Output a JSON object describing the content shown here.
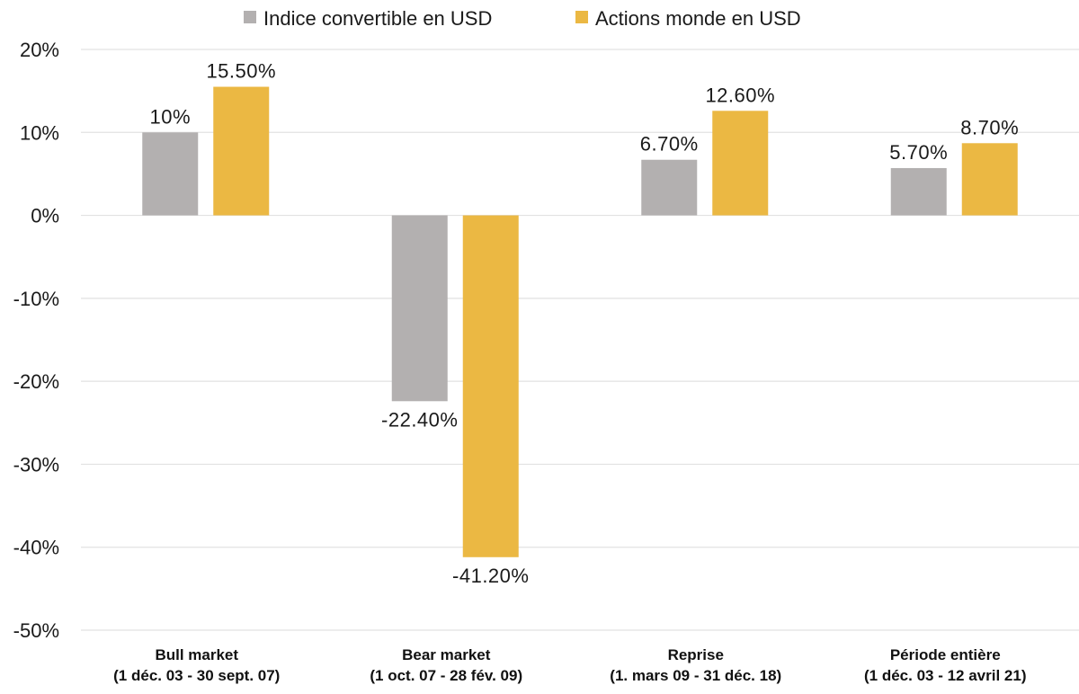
{
  "chart_data": {
    "type": "bar",
    "title": "",
    "xlabel": "",
    "ylabel": "",
    "ylim": [
      -50,
      20
    ],
    "yticks": [
      20,
      10,
      0,
      -10,
      -20,
      -30,
      -40,
      -50
    ],
    "ytick_labels": [
      "20%",
      "10%",
      "0%",
      "-10%",
      "-20%",
      "-30%",
      "-40%",
      "-50%"
    ],
    "grid": true,
    "legend_position": "top-center",
    "categories": [
      {
        "line1": "Bull market",
        "line2": "(1 déc. 03 - 30 sept. 07)"
      },
      {
        "line1": "Bear market",
        "line2": "(1 oct. 07 - 28 fév. 09)"
      },
      {
        "line1": "Reprise",
        "line2": "(1. mars 09 - 31 déc. 18)"
      },
      {
        "line1": "Période entière",
        "line2": "(1 déc. 03 - 12 avril 21)"
      }
    ],
    "series": [
      {
        "name": "Indice convertible en USD",
        "color": "#b3b0b0",
        "values": [
          10,
          -22.4,
          6.7,
          5.7
        ],
        "labels": [
          "10%",
          "-22.40%",
          "6.70%",
          "5.70%"
        ]
      },
      {
        "name": "Actions monde en USD",
        "color": "#ebb843",
        "values": [
          15.5,
          -41.2,
          12.6,
          8.7
        ],
        "labels": [
          "15.50%",
          "-41.20%",
          "12.60%",
          "8.70%"
        ]
      }
    ]
  }
}
